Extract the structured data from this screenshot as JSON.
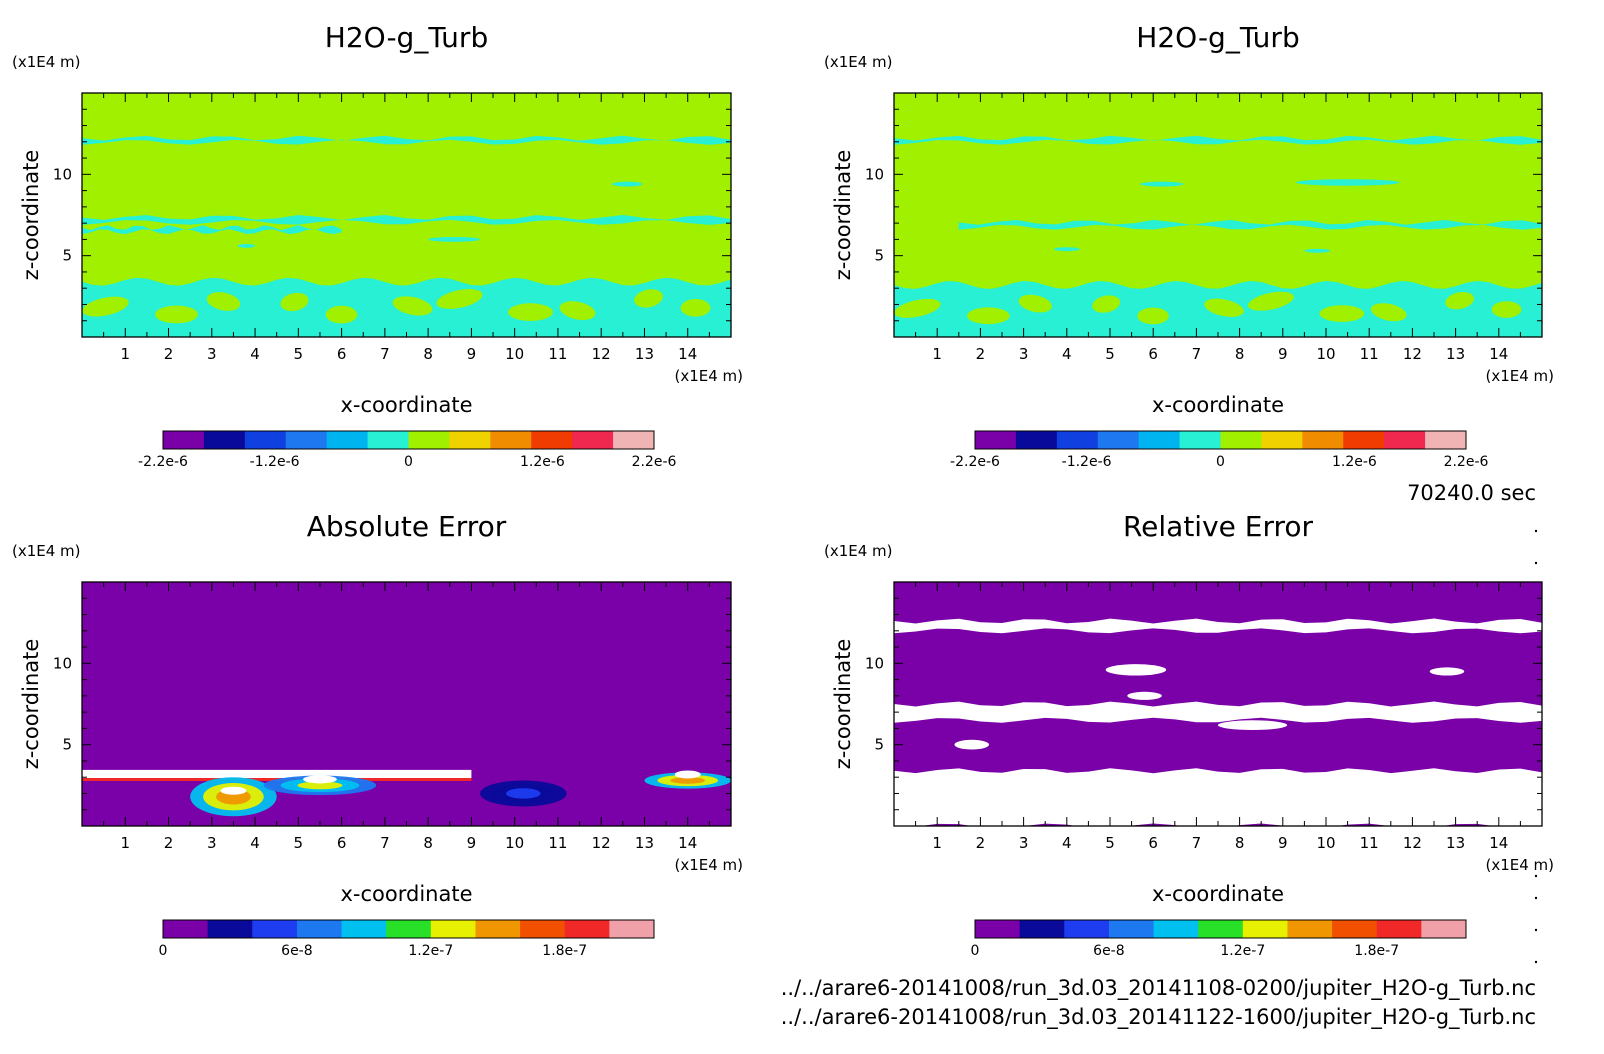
{
  "footer": {
    "time": "70240.0 sec",
    "file1": "../../arare6-20141008/run_3d.03_20141108-0200/jupiter_H2O-g_Turb.nc",
    "file2": "../../arare6-20141008/run_3d.03_20141122-1600/jupiter_H2O-g_Turb.nc"
  },
  "colors": {
    "field_scale": [
      "#7a00a8",
      "#0a0a9a",
      "#1040e0",
      "#1e78f0",
      "#00b4f0",
      "#28f0d4",
      "#a0f000",
      "#f0d200",
      "#f08c00",
      "#f03c00",
      "#f02850",
      "#f0b4b4"
    ],
    "error_scale": [
      "#7a00a8",
      "#0a0a9a",
      "#1e3cf0",
      "#1e78f0",
      "#00c0f0",
      "#28e028",
      "#e6f000",
      "#f09600",
      "#f05000",
      "#f02828",
      "#f0a0a8"
    ]
  },
  "chart_data": [
    {
      "type": "heatmap",
      "panel": "top-left",
      "title": "H2O-g_Turb",
      "xlabel": "x-coordinate",
      "ylabel": "z-coordinate",
      "x_unit": "(x1E4 m)",
      "y_unit": "(x1E4 m)",
      "xlim": [
        0,
        15
      ],
      "ylim": [
        0,
        15
      ],
      "x_ticks": [
        "1",
        "2",
        "3",
        "4",
        "5",
        "6",
        "7",
        "8",
        "9",
        "10",
        "11",
        "12",
        "13",
        "14"
      ],
      "y_ticks": [
        "5",
        "10"
      ],
      "background_value": 0,
      "colorbar": {
        "range": [
          -2.2e-06,
          2.2e-06
        ],
        "labels": [
          "-2.2e-6",
          "-1.2e-6",
          "0",
          "1.2e-6",
          "2.2e-6"
        ]
      },
      "features": {
        "bands": [
          {
            "z": 12.1,
            "thickness": 0.25,
            "x": [
              0,
              15
            ],
            "value": -2e-07
          },
          {
            "z": 7.2,
            "thickness": 0.3,
            "x": [
              0,
              15
            ],
            "value": -2e-07
          },
          {
            "z": 6.6,
            "thickness": 0.25,
            "x": [
              0,
              6
            ],
            "value": -2e-07
          }
        ],
        "patches": [
          {
            "x": 12.6,
            "z": 9.4,
            "rx": 0.35,
            "rz": 0.15,
            "value": -2e-07
          },
          {
            "x": 8.6,
            "z": 6.0,
            "rx": 0.6,
            "rz": 0.15,
            "value": -2e-07
          },
          {
            "x": 3.8,
            "z": 5.6,
            "rx": 0.2,
            "rz": 0.12,
            "value": -2e-07
          }
        ],
        "turbulent_layer": {
          "z_top": 3.4,
          "value": -2e-07
        }
      }
    },
    {
      "type": "heatmap",
      "panel": "top-right",
      "title": "H2O-g_Turb",
      "xlabel": "x-coordinate",
      "ylabel": "z-coordinate",
      "x_unit": "(x1E4 m)",
      "y_unit": "(x1E4 m)",
      "xlim": [
        0,
        15
      ],
      "ylim": [
        0,
        15
      ],
      "x_ticks": [
        "1",
        "2",
        "3",
        "4",
        "5",
        "6",
        "7",
        "8",
        "9",
        "10",
        "11",
        "12",
        "13",
        "14"
      ],
      "y_ticks": [
        "5",
        "10"
      ],
      "background_value": 0,
      "colorbar": {
        "range": [
          -2.2e-06,
          2.2e-06
        ],
        "labels": [
          "-2.2e-6",
          "-1.2e-6",
          "0",
          "1.2e-6",
          "2.2e-6"
        ]
      },
      "features": {
        "bands": [
          {
            "z": 12.1,
            "thickness": 0.25,
            "x": [
              0,
              15
            ],
            "value": -2e-07
          },
          {
            "z": 6.9,
            "thickness": 0.3,
            "x": [
              1.5,
              15
            ],
            "value": -2e-07
          }
        ],
        "patches": [
          {
            "x": 10.5,
            "z": 9.5,
            "rx": 1.2,
            "rz": 0.2,
            "value": -2e-07
          },
          {
            "x": 6.2,
            "z": 9.4,
            "rx": 0.5,
            "rz": 0.15,
            "value": -2e-07
          },
          {
            "x": 4.0,
            "z": 5.4,
            "rx": 0.3,
            "rz": 0.12,
            "value": -2e-07
          },
          {
            "x": 9.8,
            "z": 5.3,
            "rx": 0.3,
            "rz": 0.12,
            "value": -2e-07
          }
        ],
        "turbulent_layer": {
          "z_top": 3.2,
          "value": -2e-07
        }
      }
    },
    {
      "type": "heatmap",
      "panel": "bottom-left",
      "title": "Absolute Error",
      "xlabel": "x-coordinate",
      "ylabel": "z-coordinate",
      "x_unit": "(x1E4 m)",
      "y_unit": "(x1E4 m)",
      "xlim": [
        0,
        15
      ],
      "ylim": [
        0,
        15
      ],
      "x_ticks": [
        "1",
        "2",
        "3",
        "4",
        "5",
        "6",
        "7",
        "8",
        "9",
        "10",
        "11",
        "12",
        "13",
        "14"
      ],
      "y_ticks": [
        "5",
        "10"
      ],
      "background_value": 0,
      "colorbar": {
        "range": [
          0,
          2.2e-07
        ],
        "labels": [
          "0",
          "6e-8",
          "1.2e-7",
          "1.8e-7"
        ]
      },
      "features": {
        "saturated_band": {
          "z": 3.2,
          "thickness": 0.5,
          "x": [
            0,
            9
          ],
          "value": 2.5e-07
        },
        "hotspots": [
          {
            "x": 3.5,
            "z": 1.8,
            "rx": 1.0,
            "rz": 1.2,
            "value": 1.5e-07
          },
          {
            "x": 5.5,
            "z": 2.5,
            "rx": 1.3,
            "rz": 0.6,
            "value": 1.2e-07
          },
          {
            "x": 10.2,
            "z": 2.0,
            "rx": 1.0,
            "rz": 0.8,
            "value": 4e-08
          },
          {
            "x": 14.0,
            "z": 2.8,
            "rx": 1.0,
            "rz": 0.5,
            "value": 1.5e-07
          }
        ]
      }
    },
    {
      "type": "heatmap",
      "panel": "bottom-right",
      "title": "Relative Error",
      "xlabel": "x-coordinate",
      "ylabel": "z-coordinate",
      "x_unit": "(x1E4 m)",
      "y_unit": "(x1E4 m)",
      "xlim": [
        0,
        15
      ],
      "ylim": [
        0,
        15
      ],
      "x_ticks": [
        "1",
        "2",
        "3",
        "4",
        "5",
        "6",
        "7",
        "8",
        "9",
        "10",
        "11",
        "12",
        "13",
        "14"
      ],
      "y_ticks": [
        "5",
        "10"
      ],
      "background_value": 0,
      "colorbar": {
        "range": [
          0,
          2.2e-07
        ],
        "labels": [
          "0",
          "6e-8",
          "1.2e-7",
          "1.8e-7"
        ]
      },
      "features": {
        "white_regions": [
          {
            "z": 12.3,
            "thickness": 0.6,
            "x": [
              0,
              15
            ]
          },
          {
            "z": 7.0,
            "thickness": 1.0,
            "x": [
              0,
              15
            ]
          },
          {
            "z": 1.7,
            "thickness": 3.4,
            "x": [
              0,
              15
            ]
          },
          {
            "x": 5.6,
            "z": 9.6,
            "rx": 0.7,
            "rz": 0.35
          },
          {
            "x": 12.8,
            "z": 9.5,
            "rx": 0.4,
            "rz": 0.25
          },
          {
            "x": 5.8,
            "z": 8.0,
            "rx": 0.4,
            "rz": 0.25
          },
          {
            "x": 8.3,
            "z": 6.2,
            "rx": 0.8,
            "rz": 0.3
          },
          {
            "x": 1.8,
            "z": 5.0,
            "rx": 0.4,
            "rz": 0.3
          }
        ]
      }
    }
  ]
}
